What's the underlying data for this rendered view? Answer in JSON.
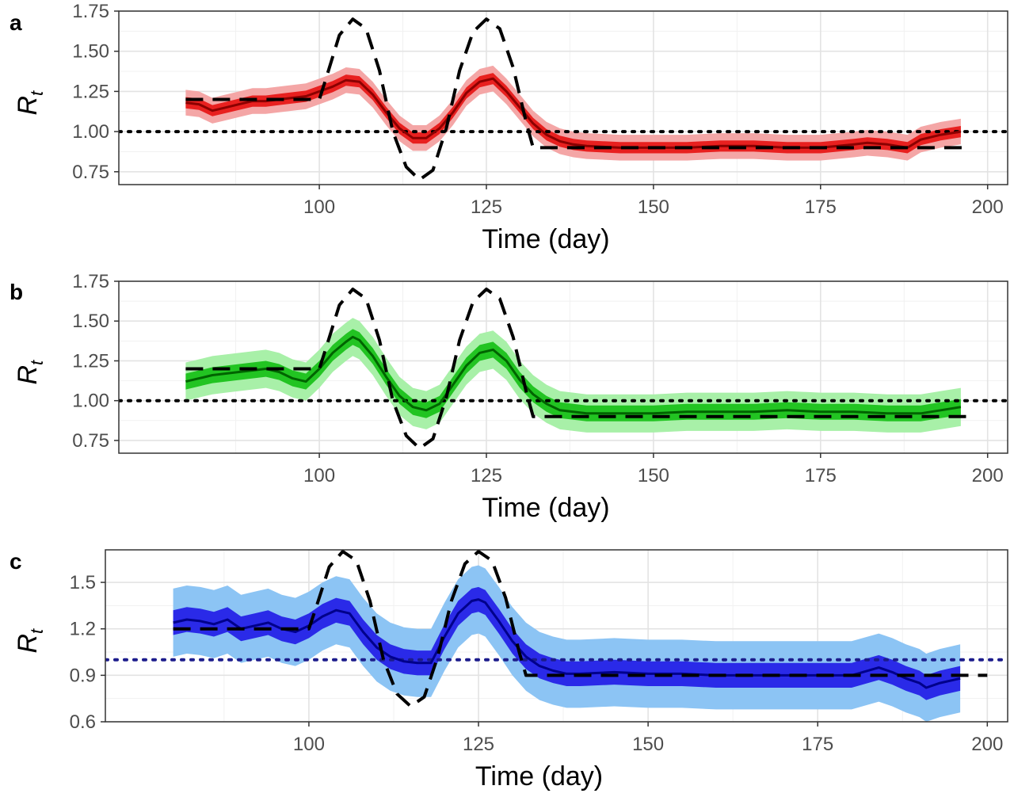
{
  "chart_data": [
    {
      "panel": "a",
      "type": "line",
      "xlabel": "Time (day)",
      "ylabel": "R",
      "ylabel_subscript": "t",
      "xlim": [
        70,
        203
      ],
      "ylim": [
        0.67,
        1.75
      ],
      "x_ticks": [
        100,
        125,
        150,
        175,
        200
      ],
      "x_tick_labels": [
        "100",
        "125",
        "150",
        "175",
        "200"
      ],
      "y_ticks": [
        0.75,
        1.0,
        1.25,
        1.5,
        1.75
      ],
      "y_tick_labels": [
        "0.75",
        "1.00",
        "1.25",
        "1.50",
        "1.75"
      ],
      "grid": true,
      "reference_line": 1.0,
      "colors": {
        "line": "#8b0000",
        "inner_band": "#e8201f",
        "outer_band": "#f4a6a6",
        "reference": "#000000",
        "truth": "#000000"
      },
      "truth": {
        "x": [
          80,
          100,
          101,
          103,
          105,
          107,
          109,
          111,
          113,
          115,
          117,
          119,
          121,
          123,
          125,
          127,
          129,
          131,
          132,
          133,
          197
        ],
        "y": [
          1.2,
          1.2,
          1.33,
          1.6,
          1.7,
          1.64,
          1.38,
          1.0,
          0.78,
          0.7,
          0.76,
          1.02,
          1.38,
          1.62,
          1.7,
          1.64,
          1.4,
          1.05,
          0.9,
          0.9,
          0.9
        ]
      },
      "estimate": {
        "x": [
          80,
          82,
          84,
          86,
          88,
          90,
          92,
          94,
          96,
          98,
          100,
          102,
          104,
          106,
          108,
          110,
          112,
          114,
          116,
          118,
          120,
          122,
          124,
          126,
          128,
          130,
          132,
          134,
          136,
          138,
          140,
          145,
          150,
          155,
          160,
          165,
          170,
          175,
          180,
          182,
          185,
          188,
          190,
          193,
          196
        ],
        "y": [
          1.18,
          1.17,
          1.13,
          1.15,
          1.17,
          1.19,
          1.19,
          1.2,
          1.21,
          1.22,
          1.25,
          1.28,
          1.32,
          1.31,
          1.23,
          1.12,
          1.02,
          0.96,
          0.96,
          1.02,
          1.12,
          1.24,
          1.31,
          1.33,
          1.25,
          1.15,
          1.05,
          0.98,
          0.94,
          0.92,
          0.91,
          0.9,
          0.9,
          0.9,
          0.91,
          0.91,
          0.9,
          0.9,
          0.92,
          0.93,
          0.92,
          0.9,
          0.95,
          0.98,
          1.0
        ],
        "inner_band_halfwidth": 0.035,
        "outer_band_halfwidth": 0.08
      }
    },
    {
      "panel": "b",
      "type": "line",
      "xlabel": "Time (day)",
      "ylabel": "R",
      "ylabel_subscript": "t",
      "xlim": [
        70,
        203
      ],
      "ylim": [
        0.67,
        1.75
      ],
      "x_ticks": [
        100,
        125,
        150,
        175,
        200
      ],
      "x_tick_labels": [
        "100",
        "125",
        "150",
        "175",
        "200"
      ],
      "y_ticks": [
        0.75,
        1.0,
        1.25,
        1.5,
        1.75
      ],
      "y_tick_labels": [
        "0.75",
        "1.00",
        "1.25",
        "1.50",
        "1.75"
      ],
      "grid": true,
      "reference_line": 1.0,
      "colors": {
        "line": "#006400",
        "inner_band": "#22c422",
        "outer_band": "#a8f0a8",
        "reference": "#000000",
        "truth": "#000000"
      },
      "truth": {
        "x": [
          80,
          100,
          101,
          103,
          105,
          107,
          109,
          111,
          113,
          115,
          117,
          119,
          121,
          123,
          125,
          127,
          129,
          131,
          132,
          133,
          197
        ],
        "y": [
          1.2,
          1.2,
          1.33,
          1.6,
          1.7,
          1.64,
          1.38,
          1.0,
          0.78,
          0.7,
          0.76,
          1.02,
          1.38,
          1.62,
          1.7,
          1.64,
          1.4,
          1.05,
          0.9,
          0.9,
          0.9
        ]
      },
      "estimate": {
        "x": [
          80,
          82,
          84,
          86,
          88,
          90,
          92,
          94,
          96,
          98,
          100,
          102,
          104,
          105,
          106,
          108,
          110,
          112,
          114,
          116,
          118,
          120,
          122,
          124,
          126,
          128,
          130,
          132,
          134,
          136,
          138,
          140,
          145,
          150,
          155,
          160,
          165,
          170,
          175,
          180,
          185,
          190,
          193,
          196
        ],
        "y": [
          1.12,
          1.14,
          1.16,
          1.17,
          1.18,
          1.19,
          1.2,
          1.18,
          1.14,
          1.12,
          1.2,
          1.3,
          1.37,
          1.4,
          1.38,
          1.28,
          1.15,
          1.03,
          0.96,
          0.94,
          0.98,
          1.1,
          1.22,
          1.3,
          1.32,
          1.25,
          1.13,
          1.04,
          0.98,
          0.94,
          0.93,
          0.92,
          0.92,
          0.92,
          0.93,
          0.93,
          0.93,
          0.94,
          0.93,
          0.93,
          0.92,
          0.92,
          0.94,
          0.96
        ],
        "inner_band_halfwidth": 0.05,
        "outer_band_halfwidth": 0.12
      }
    },
    {
      "panel": "c",
      "type": "line",
      "xlabel": "Time (day)",
      "ylabel": "R",
      "ylabel_subscript": "t",
      "xlim": [
        70,
        203
      ],
      "ylim": [
        0.6,
        1.71
      ],
      "x_ticks": [
        100,
        125,
        150,
        175,
        200
      ],
      "x_tick_labels": [
        "100",
        "125",
        "150",
        "175",
        "200"
      ],
      "y_ticks": [
        0.6,
        0.9,
        1.2,
        1.5
      ],
      "y_tick_labels": [
        "0.6",
        "0.9",
        "1.2",
        "1.5"
      ],
      "grid": true,
      "reference_line": 1.0,
      "colors": {
        "line": "#00008b",
        "inner_band": "#2a2ae8",
        "outer_band": "#8cc4f4",
        "reference": "#1c1c8c",
        "truth": "#000000"
      },
      "truth": {
        "x": [
          80,
          100,
          101,
          103,
          105,
          107,
          109,
          111,
          113,
          115,
          117,
          119,
          121,
          123,
          125,
          127,
          129,
          131,
          132,
          133,
          200
        ],
        "y": [
          1.2,
          1.2,
          1.33,
          1.6,
          1.7,
          1.64,
          1.38,
          1.0,
          0.78,
          0.7,
          0.76,
          1.02,
          1.38,
          1.62,
          1.7,
          1.64,
          1.4,
          1.05,
          0.9,
          0.9,
          0.9
        ]
      },
      "estimate": {
        "x": [
          80,
          82,
          84,
          86,
          88,
          90,
          92,
          94,
          96,
          98,
          100,
          102,
          104,
          106,
          108,
          110,
          112,
          114,
          116,
          118,
          120,
          122,
          124,
          125,
          126,
          128,
          130,
          132,
          134,
          136,
          138,
          140,
          145,
          150,
          155,
          160,
          165,
          170,
          175,
          180,
          184,
          186,
          188,
          190,
          191,
          193,
          196
        ],
        "y": [
          1.24,
          1.26,
          1.25,
          1.23,
          1.26,
          1.2,
          1.22,
          1.24,
          1.2,
          1.18,
          1.22,
          1.28,
          1.32,
          1.3,
          1.18,
          1.08,
          1.02,
          0.99,
          0.98,
          0.98,
          1.15,
          1.3,
          1.38,
          1.39,
          1.37,
          1.25,
          1.12,
          1.02,
          0.96,
          0.93,
          0.91,
          0.91,
          0.92,
          0.91,
          0.91,
          0.9,
          0.9,
          0.9,
          0.9,
          0.9,
          0.95,
          0.92,
          0.88,
          0.85,
          0.82,
          0.85,
          0.88
        ],
        "inner_band_halfwidth": 0.08,
        "outer_band_halfwidth": 0.22
      }
    }
  ]
}
